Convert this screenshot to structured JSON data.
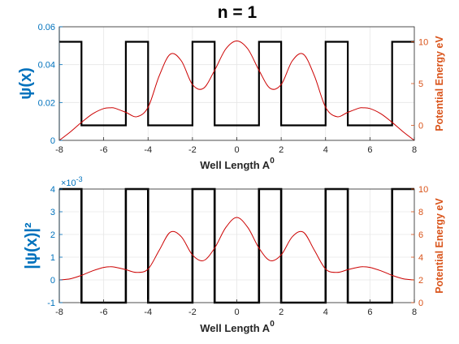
{
  "figure": {
    "title": "n =  1"
  },
  "chart_data": [
    {
      "type": "line",
      "subplot": "top",
      "xlabel": "Well Length A",
      "xlabel_sup": "0",
      "ylabel_left": "ψ(x)",
      "ylabel_right": "Potential Energy eV",
      "xlim": [
        -8,
        8
      ],
      "ylim_left": [
        0,
        0.06
      ],
      "ylim_right": [
        -1.8,
        11.8
      ],
      "x_ticks": [
        -8,
        -6,
        -4,
        -2,
        0,
        2,
        4,
        6,
        8
      ],
      "y_ticks_left": [
        0,
        0.02,
        0.04,
        0.06
      ],
      "y_tick_labels_left": [
        "0",
        "0.02",
        "0.04",
        "0.06"
      ],
      "y_ticks_right": [
        0,
        5,
        10
      ],
      "grid": true,
      "colors": {
        "left_axis": "#0072BD",
        "right_axis": "#D95319",
        "wavefunction": "#CC0000",
        "potential": "#000000"
      },
      "potential": {
        "name": "",
        "x": [
          -8,
          -7,
          -7,
          -5,
          -5,
          -4,
          -4,
          -2,
          -2,
          -1,
          -1,
          1,
          1,
          2,
          2,
          4,
          4,
          5,
          5,
          7,
          7,
          8
        ],
        "y": [
          10,
          10,
          0,
          0,
          10,
          10,
          0,
          0,
          10,
          10,
          0,
          0,
          10,
          10,
          0,
          0,
          10,
          10,
          0,
          0,
          10,
          10
        ]
      },
      "wavefunction": {
        "name": "",
        "x": [
          -8,
          -7.5,
          -7,
          -6.5,
          -6,
          -5.7,
          -5.5,
          -5,
          -4.5,
          -4,
          -3.5,
          -3,
          -2.5,
          -2,
          -1.5,
          -1,
          -0.5,
          0,
          0.5,
          1,
          1.5,
          2,
          2.5,
          3,
          3.5,
          4,
          4.5,
          5,
          5.5,
          5.7,
          6,
          6.5,
          7,
          7.5,
          8
        ],
        "y": [
          0,
          0.0045,
          0.0095,
          0.014,
          0.0168,
          0.0172,
          0.017,
          0.0148,
          0.0125,
          0.0175,
          0.034,
          0.0455,
          0.042,
          0.0295,
          0.0275,
          0.037,
          0.0482,
          0.0525,
          0.0482,
          0.037,
          0.0275,
          0.0295,
          0.042,
          0.0455,
          0.034,
          0.0175,
          0.0125,
          0.0148,
          0.017,
          0.0172,
          0.0168,
          0.014,
          0.0095,
          0.0045,
          0
        ]
      }
    },
    {
      "type": "line",
      "subplot": "bottom",
      "xlabel": "Well Length A",
      "xlabel_sup": "0",
      "ylabel_left": "|ψ(x)|²",
      "ylabel_right": "Potential Energy eV",
      "y_exponent_label": "×10",
      "y_exponent_sup": "-3",
      "xlim": [
        -8,
        8
      ],
      "ylim_left": [
        -1,
        4
      ],
      "ylim_right": [
        0,
        10
      ],
      "x_ticks": [
        -8,
        -6,
        -4,
        -2,
        0,
        2,
        4,
        6,
        8
      ],
      "y_ticks_left": [
        -1,
        0,
        1,
        2,
        3,
        4
      ],
      "y_ticks_right": [
        0,
        2,
        4,
        6,
        8,
        10
      ],
      "grid": true,
      "colors": {
        "left_axis": "#0072BD",
        "right_axis": "#D95319",
        "probability": "#CC0000",
        "potential": "#000000"
      },
      "potential": {
        "name": "",
        "x": [
          -8,
          -7,
          -7,
          -5,
          -5,
          -4,
          -4,
          -2,
          -2,
          -1,
          -1,
          1,
          1,
          2,
          2,
          4,
          4,
          5,
          5,
          7,
          7,
          8
        ],
        "y": [
          10,
          10,
          0,
          0,
          10,
          10,
          0,
          0,
          10,
          10,
          0,
          0,
          10,
          10,
          0,
          0,
          10,
          10,
          0,
          0,
          10,
          10
        ]
      },
      "probability": {
        "name": "",
        "x": [
          -8,
          -7.5,
          -7,
          -6.5,
          -6,
          -5.7,
          -5.5,
          -5,
          -4.5,
          -4,
          -3.5,
          -3,
          -2.5,
          -2,
          -1.5,
          -1,
          -0.5,
          0,
          0.5,
          1,
          1.5,
          2,
          2.5,
          3,
          3.5,
          4,
          4.5,
          5,
          5.5,
          5.7,
          6,
          6.5,
          7,
          7.5,
          8
        ],
        "y": [
          0,
          0.05,
          0.2,
          0.4,
          0.55,
          0.58,
          0.56,
          0.45,
          0.33,
          0.48,
          1.3,
          2.1,
          1.9,
          1.1,
          0.85,
          1.4,
          2.3,
          2.75,
          2.3,
          1.4,
          0.85,
          1.1,
          1.9,
          2.1,
          1.3,
          0.48,
          0.33,
          0.45,
          0.56,
          0.58,
          0.55,
          0.4,
          0.2,
          0.05,
          0
        ]
      }
    }
  ]
}
